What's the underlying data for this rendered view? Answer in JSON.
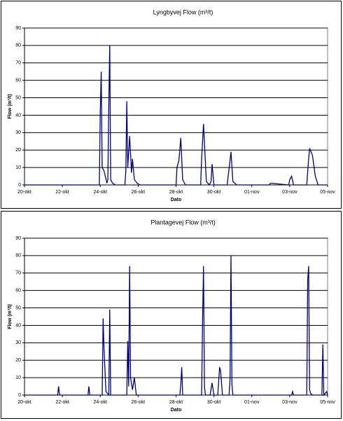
{
  "chart_data": [
    {
      "type": "line",
      "title": "Lyngbyvej Flow (m³/t)",
      "x_label": "Dato",
      "y_label": "Flow (m³/t)",
      "x": [
        0,
        3.95,
        4.0,
        4.05,
        4.1,
        4.2,
        4.35,
        4.4,
        4.45,
        4.5,
        4.55,
        4.65,
        4.8,
        5.3,
        5.35,
        5.4,
        5.45,
        5.55,
        5.65,
        5.7,
        5.8,
        5.95,
        6.1,
        8.0,
        8.05,
        8.15,
        8.25,
        8.35,
        8.5,
        9.3,
        9.35,
        9.45,
        9.6,
        9.75,
        9.85,
        9.9,
        10.0,
        10.7,
        10.75,
        10.85,
        10.9,
        11.0,
        11.2,
        12.9,
        13.0,
        13.95,
        14.0,
        14.1,
        14.2,
        14.9,
        15.0,
        15.05,
        15.2,
        15.35,
        15.5,
        16
      ],
      "values": [
        0,
        0,
        42,
        65,
        10,
        8,
        1,
        3,
        46,
        80,
        3,
        1,
        0,
        0,
        8,
        48,
        10,
        28,
        7,
        15,
        3,
        1,
        0,
        0,
        10,
        14,
        27,
        3,
        0,
        0,
        15,
        35,
        2,
        0,
        2,
        12,
        0,
        0,
        5,
        14,
        19,
        2,
        0,
        0,
        1,
        0,
        3,
        5,
        0,
        0,
        15,
        21,
        17,
        5,
        0,
        0
      ],
      "color": "#000080",
      "xlim": [
        0,
        16
      ],
      "xticks": [
        {
          "value": 0,
          "label": "20-okt"
        },
        {
          "value": 2,
          "label": "22-okt"
        },
        {
          "value": 4,
          "label": "24-okt"
        },
        {
          "value": 6,
          "label": "26-okt"
        },
        {
          "value": 8,
          "label": "28-okt"
        },
        {
          "value": 10,
          "label": "30-okt"
        },
        {
          "value": 12,
          "label": "01-nov"
        },
        {
          "value": 14,
          "label": "03-nov"
        },
        {
          "value": 16,
          "label": "05-nov"
        }
      ],
      "ylim": [
        0,
        90
      ],
      "yticks": [
        0,
        10,
        20,
        30,
        40,
        50,
        60,
        70,
        80,
        90
      ],
      "grid": true
    },
    {
      "type": "line",
      "title": "Plantagevej Flow (m³/t)",
      "x_label": "Dato",
      "y_label": "Flow (m³/t)",
      "x": [
        0,
        1.75,
        1.8,
        1.85,
        3.35,
        3.4,
        3.45,
        4.1,
        4.15,
        4.2,
        4.3,
        4.45,
        4.5,
        4.55,
        5.4,
        5.45,
        5.5,
        5.55,
        5.6,
        5.7,
        5.8,
        5.9,
        8.2,
        8.25,
        8.3,
        8.35,
        9.35,
        9.4,
        9.45,
        9.5,
        9.55,
        9.8,
        9.9,
        10.0,
        10.2,
        10.3,
        10.35,
        10.45,
        10.8,
        10.85,
        10.9,
        10.95,
        11.0,
        14.1,
        14.15,
        14.2,
        14.9,
        14.95,
        15.0,
        15.05,
        15.1,
        15.2,
        15.7,
        15.75,
        15.8,
        15.95,
        16
      ],
      "values": [
        0,
        0,
        5,
        0,
        0,
        5,
        0,
        0,
        44,
        26,
        2,
        0,
        49,
        0,
        0,
        31,
        5,
        74,
        10,
        3,
        10,
        0,
        0,
        6,
        16,
        0,
        0,
        43,
        74,
        5,
        0,
        0,
        7,
        0,
        0,
        16,
        14,
        0,
        0,
        9,
        80,
        6,
        0,
        0,
        2,
        0,
        0,
        66,
        74,
        3,
        1,
        0,
        0,
        29,
        0,
        2,
        0
      ],
      "color": "#000080",
      "xlim": [
        0,
        16
      ],
      "xticks": [
        {
          "value": 0,
          "label": "20-okt"
        },
        {
          "value": 2,
          "label": "22-okt"
        },
        {
          "value": 4,
          "label": "24-okt"
        },
        {
          "value": 6,
          "label": "26-okt"
        },
        {
          "value": 8,
          "label": "28-okt"
        },
        {
          "value": 10,
          "label": "30-okt"
        },
        {
          "value": 12,
          "label": "01-nov"
        },
        {
          "value": 14,
          "label": "03-nov"
        },
        {
          "value": 16,
          "label": "05-nov"
        }
      ],
      "ylim": [
        0,
        90
      ],
      "yticks": [
        0,
        10,
        20,
        30,
        40,
        50,
        60,
        70,
        80,
        90
      ],
      "grid": true
    }
  ]
}
